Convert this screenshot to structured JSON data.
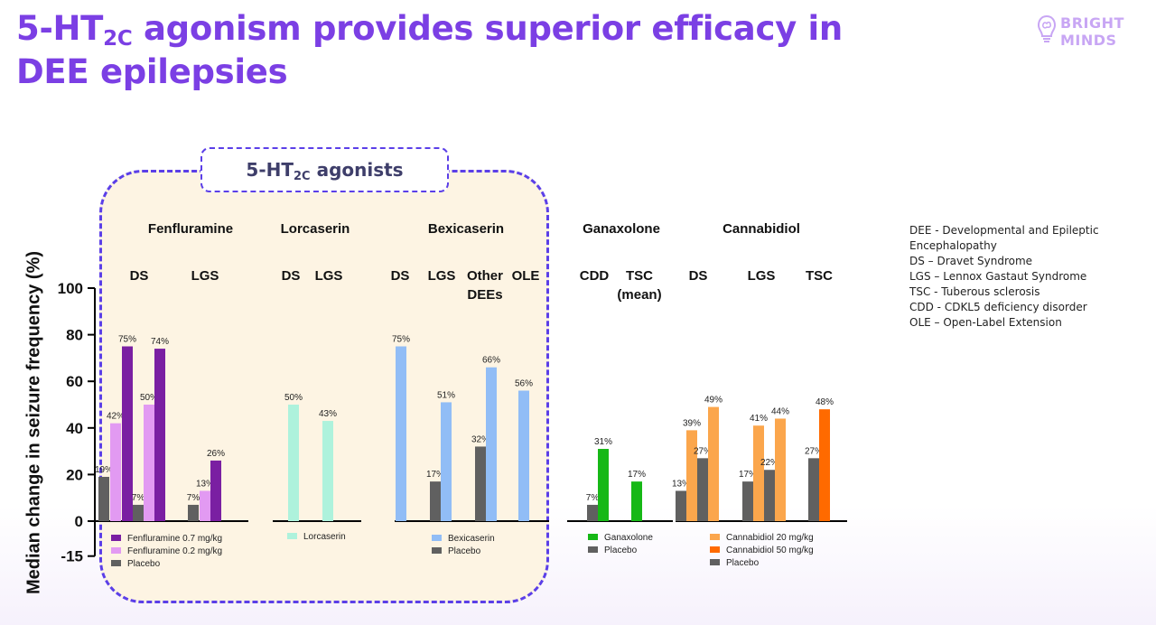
{
  "title": {
    "pre": "5-HT",
    "sub": "2C",
    "post": " agonism provides superior efficacy in DEE epilepsies"
  },
  "logo": {
    "line1": "BRIGHT",
    "line2": "MINDS",
    "icon": "lightbulb-brain-icon"
  },
  "agonists_label": {
    "pre": "5-HT",
    "sub": "2C",
    "post": " agonists"
  },
  "glossary": [
    "DEE - Developmental and Epileptic Encephalopathy",
    "DS – Dravet Syndrome",
    "LGS – Lennox Gastaut Syndrome",
    "TSC - Tuberous sclerosis",
    "CDD - CDKL5 deficiency disorder",
    "OLE – Open-Label Extension"
  ],
  "colors": {
    "title": "#7b3fe4",
    "region_border": "#5b3fe8",
    "region_fill": "#fdf4e3",
    "fen07": "#7a1fa2",
    "fen02": "#e29af2",
    "placebo": "#606060",
    "lorcaserin": "#aef2dc",
    "bexicaserin": "#91bdf6",
    "ganaxolone": "#16b816",
    "cbd20": "#fba64c",
    "cbd50": "#ff6a00"
  },
  "chart_data": {
    "type": "bar",
    "ylabel": "Median change in seizure frequency (%)",
    "yticks": [
      100,
      80,
      60,
      40,
      20,
      0,
      -15
    ],
    "ylim": [
      -15,
      100
    ],
    "grid": false,
    "drugs": [
      "Fenfluramine",
      "Lorcaserin",
      "Bexicaserin",
      "Ganaxolone",
      "Cannabidiol"
    ],
    "groups": [
      {
        "drug": "Fenfluramine",
        "label": "DS",
        "bars": [
          {
            "series": "Placebo",
            "value": 19,
            "label": "19%"
          },
          {
            "series": "Fenfluramine 0.2 mg/kg",
            "value": 42,
            "label": "42%"
          },
          {
            "series": "Fenfluramine 0.7 mg/kg",
            "value": 75,
            "label": "75%"
          },
          {
            "series": "Placebo",
            "value": 7,
            "label": "7%"
          },
          {
            "series": "Fenfluramine 0.2 mg/kg",
            "value": 50,
            "label": "50%"
          },
          {
            "series": "Fenfluramine 0.7 mg/kg",
            "value": 74,
            "label": "74%"
          }
        ]
      },
      {
        "drug": "Fenfluramine",
        "label": "LGS",
        "bars": [
          {
            "series": "Placebo",
            "value": 7,
            "label": "7%"
          },
          {
            "series": "Fenfluramine 0.2 mg/kg",
            "value": 13,
            "label": "13%"
          },
          {
            "series": "Fenfluramine 0.7 mg/kg",
            "value": 26,
            "label": "26%"
          }
        ]
      },
      {
        "drug": "Lorcaserin",
        "label": "DS",
        "bars": [
          {
            "series": "Lorcaserin",
            "value": 50,
            "label": "50%"
          }
        ]
      },
      {
        "drug": "Lorcaserin",
        "label": "LGS",
        "bars": [
          {
            "series": "Lorcaserin",
            "value": 43,
            "label": "43%"
          }
        ]
      },
      {
        "drug": "Bexicaserin",
        "label": "DS",
        "bars": [
          {
            "series": "Bexicaserin",
            "value": 75,
            "label": "75%"
          }
        ]
      },
      {
        "drug": "Bexicaserin",
        "label": "LGS",
        "bars": [
          {
            "series": "Placebo",
            "value": 17,
            "label": "17%"
          },
          {
            "series": "Bexicaserin",
            "value": 51,
            "label": "51%"
          }
        ]
      },
      {
        "drug": "Bexicaserin",
        "label": "Other DEEs",
        "bars": [
          {
            "series": "Placebo",
            "value": 32,
            "label": "32%"
          },
          {
            "series": "Bexicaserin",
            "value": 66,
            "label": "66%"
          }
        ]
      },
      {
        "drug": "Bexicaserin",
        "label": "OLE",
        "bars": [
          {
            "series": "Bexicaserin",
            "value": 56,
            "label": "56%"
          }
        ]
      },
      {
        "drug": "Ganaxolone",
        "label": "CDD",
        "bars": [
          {
            "series": "Placebo",
            "value": 7,
            "label": "7%"
          },
          {
            "series": "Ganaxolone",
            "value": 31,
            "label": "31%"
          }
        ]
      },
      {
        "drug": "Ganaxolone",
        "label": "TSC (mean)",
        "bars": [
          {
            "series": "Ganaxolone",
            "value": 17,
            "label": "17%"
          }
        ]
      },
      {
        "drug": "Cannabidiol",
        "label": "DS",
        "bars": [
          {
            "series": "Placebo",
            "value": 13,
            "label": "13%"
          },
          {
            "series": "Cannabidiol 20 mg/kg",
            "value": 39,
            "label": "39%"
          },
          {
            "series": "Placebo",
            "value": 27,
            "label": "27%"
          },
          {
            "series": "Cannabidiol 20 mg/kg",
            "value": 49,
            "label": "49%"
          }
        ]
      },
      {
        "drug": "Cannabidiol",
        "label": "LGS",
        "bars": [
          {
            "series": "Placebo",
            "value": 17,
            "label": "17%"
          },
          {
            "series": "Cannabidiol 20 mg/kg",
            "value": 41,
            "label": "41%"
          },
          {
            "series": "Placebo",
            "value": 22,
            "label": "22%"
          },
          {
            "series": "Cannabidiol 20 mg/kg",
            "value": 44,
            "label": "44%"
          }
        ]
      },
      {
        "drug": "Cannabidiol",
        "label": "TSC",
        "bars": [
          {
            "series": "Placebo",
            "value": 27,
            "label": "27%"
          },
          {
            "series": "Cannabidiol 50 mg/kg",
            "value": 48,
            "label": "48%"
          }
        ]
      }
    ],
    "legends": [
      {
        "drug": "Fenfluramine",
        "entries": [
          "Fenfluramine 0.7 mg/kg",
          "Fenfluramine 0.2 mg/kg",
          "Placebo"
        ]
      },
      {
        "drug": "Lorcaserin",
        "entries": [
          "Lorcaserin"
        ]
      },
      {
        "drug": "Bexicaserin",
        "entries": [
          "Bexicaserin",
          "Placebo"
        ]
      },
      {
        "drug": "Ganaxolone",
        "entries": [
          "Ganaxolone",
          "Placebo"
        ]
      },
      {
        "drug": "Cannabidiol",
        "entries": [
          "Cannabidiol 20 mg/kg",
          "Cannabidiol 50 mg/kg",
          "Placebo"
        ]
      }
    ]
  }
}
